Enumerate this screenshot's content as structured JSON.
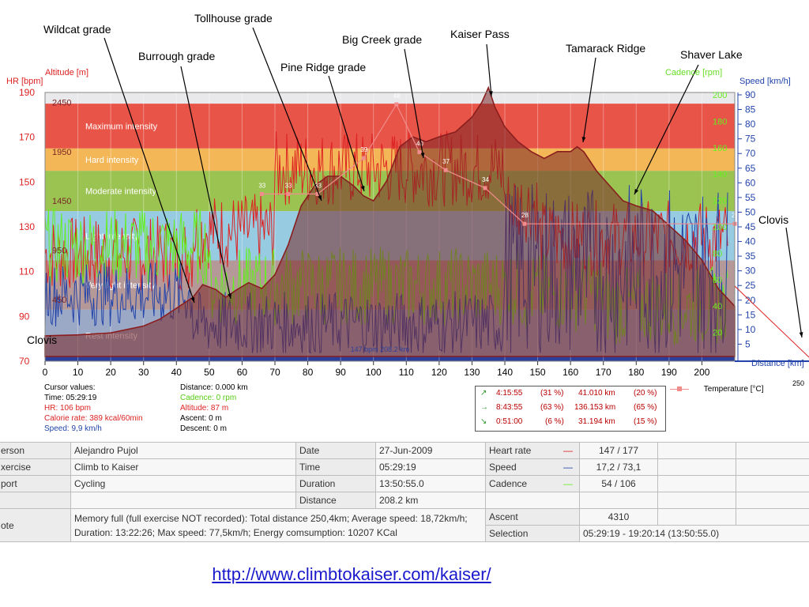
{
  "annotations": {
    "wildcat": "Wildcat grade",
    "tollhouse": "Tollhouse grade",
    "burrough": "Burrough grade",
    "big_creek": "Big Creek grade",
    "kaiser_pass": "Kaiser Pass",
    "tamarack": "Tamarack Ridge",
    "pine_ridge": "Pine Ridge grade",
    "shaver": "Shaver Lake",
    "clovis_left": "Clovis",
    "clovis_right": "Clovis",
    "end_km": "250"
  },
  "colors": {
    "hr": "#dd2222",
    "speed": "#2244aa",
    "cadence": "#66ee22",
    "altitude": "#7a2626",
    "temperature": "#f08c8c",
    "zone_max": "#e8463a",
    "zone_hard": "#f4b24a",
    "zone_moderate": "#94bf44",
    "zone_light": "#8ec8e0",
    "zone_very_light": "#b09090",
    "zone_rest": "#94a2c2"
  },
  "chart_data": {
    "type": "line",
    "x_axis": {
      "label": "Distance [km]",
      "range": [
        0,
        210
      ],
      "ticks": [
        0,
        10,
        20,
        30,
        40,
        50,
        60,
        70,
        80,
        90,
        100,
        110,
        120,
        130,
        140,
        150,
        160,
        170,
        180,
        190,
        200
      ]
    },
    "y_axes": {
      "hr": {
        "label": "HR [bpm]",
        "range": [
          70,
          190
        ],
        "ticks": [
          70,
          90,
          110,
          130,
          150,
          170,
          190
        ]
      },
      "altitude": {
        "label": "Altitude [m]",
        "ticks": [
          450,
          950,
          1450,
          1950,
          2450
        ]
      },
      "cadence": {
        "label": "Cadence [rpm]",
        "ticks": [
          20,
          40,
          60,
          80,
          100,
          120,
          140,
          160,
          180,
          200
        ]
      },
      "speed": {
        "label": "Speed [km/h]",
        "range": [
          0,
          90
        ],
        "ticks": [
          5,
          10,
          15,
          20,
          25,
          30,
          35,
          40,
          45,
          50,
          55,
          60,
          65,
          70,
          75,
          80,
          85,
          90
        ]
      }
    },
    "intensity_zones": [
      {
        "name": "Maximum intensity",
        "from": 165,
        "to": 185
      },
      {
        "name": "Hard intensity",
        "from": 155,
        "to": 165
      },
      {
        "name": "Moderate intensity",
        "from": 137,
        "to": 155
      },
      {
        "name": "Light intensity",
        "from": 115,
        "to": 137
      },
      {
        "name": "Very light intensity",
        "from": 93,
        "to": 115
      },
      {
        "name": "Rest intensity",
        "from": 70,
        "to": 93
      }
    ],
    "altitude_profile": {
      "x": [
        0,
        10,
        20,
        30,
        35,
        40,
        45,
        48,
        52,
        55,
        58,
        62,
        66,
        70,
        74,
        78,
        82,
        86,
        90,
        94,
        97,
        100,
        104,
        108,
        112,
        116,
        120,
        125,
        130,
        133,
        135,
        137,
        140,
        144,
        148,
        152,
        156,
        160,
        162,
        164,
        168,
        172,
        176,
        180,
        185,
        190,
        195,
        200,
        205,
        210
      ],
      "y": [
        80,
        90,
        110,
        180,
        250,
        360,
        470,
        600,
        550,
        470,
        540,
        620,
        560,
        700,
        1000,
        1400,
        1600,
        1700,
        1700,
        1600,
        1500,
        1450,
        1650,
        2000,
        2100,
        2050,
        2100,
        2150,
        2300,
        2450,
        2600,
        2400,
        2200,
        2050,
        1950,
        1880,
        1950,
        1950,
        2000,
        1950,
        1750,
        1600,
        1450,
        1400,
        1350,
        1200,
        1050,
        850,
        560,
        380
      ]
    },
    "temperature": {
      "x": [
        66,
        74,
        83,
        97,
        107,
        114,
        122,
        134,
        146,
        210
      ],
      "y": [
        33,
        33,
        33,
        39,
        48,
        40,
        37,
        34,
        28,
        28
      ]
    },
    "hr_series_label": "147 bpm 208.2 km"
  },
  "cursor": {
    "title": "Cursor values:",
    "time": "Time: 05:29:19",
    "hr": "HR: 106 bpm",
    "calorie": "Calorie rate: 389 kcal/60min",
    "speed": "Speed: 9,9 km/h",
    "distance": "Distance: 0.000 km",
    "cadence": "Cadence: 0 rpm",
    "altitude": "Altitude: 87 m",
    "ascent": "Ascent: 0 m",
    "descent": "Descent: 0 m"
  },
  "selection": [
    {
      "arrow": "↗",
      "time": "4:15:55",
      "pct_time": "(31 %)",
      "dist": "41.010 km",
      "pct_dist": "(20 %)"
    },
    {
      "arrow": "→",
      "time": "8:43:55",
      "pct_time": "(63 %)",
      "dist": "136.153 km",
      "pct_dist": "(65 %)"
    },
    {
      "arrow": "↘",
      "time": "0:51:00",
      "pct_time": "(6 %)",
      "dist": "31.194 km",
      "pct_dist": "(15 %)"
    }
  ],
  "temperature_legend": "Temperature [°C]",
  "info_table": {
    "person_label": "erson",
    "person": "Alejandro Pujol",
    "exercise_label": "xercise",
    "exercise": "Climb to Kaiser",
    "sport_label": "port",
    "sport": "Cycling",
    "note_label": "ote",
    "note": "Memory full (full exercise NOT recorded): Total distance 250,4km; Average speed: 18,72km/h; Duration: 13:22:26; Max speed: 77,5km/h; Energy comsumption: 10207 KCal",
    "date_label": "Date",
    "date": "27-Jun-2009",
    "time_label": "Time",
    "time": "05:29:19",
    "duration_label": "Duration",
    "duration": "13:50:55.0",
    "distance_label": "Distance",
    "distance": "208.2 km",
    "hr_label": "Heart rate",
    "hr": "147 / 177",
    "speed_label": "Speed",
    "speed": "17,2 / 73,1",
    "cadence_label": "Cadence",
    "cadence": "54 / 106",
    "ascent_label": "Ascent",
    "ascent": "4310",
    "selection_label": "Selection",
    "selection": "05:29:19 - 19:20:14 (13:50:55.0)"
  },
  "link": "http://www.climbtokaiser.com/kaiser/"
}
